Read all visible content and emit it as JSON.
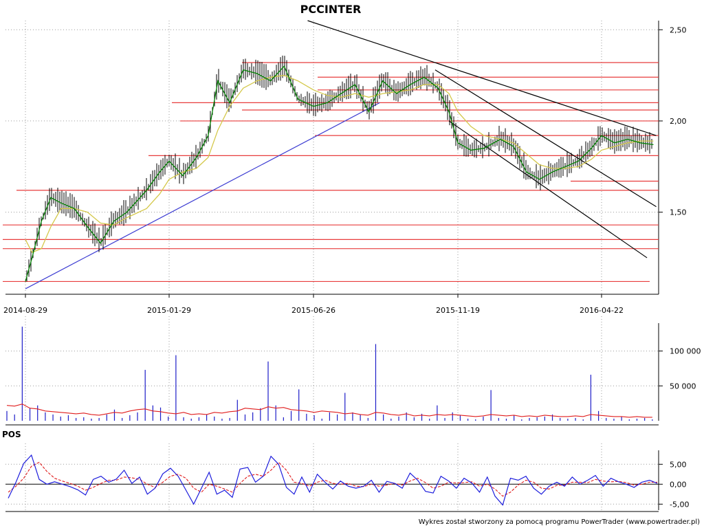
{
  "title": "PCCINTER",
  "footer": "Wykres został stworzony za pomocą programu PowerTrader (www.powertrader.pl)",
  "colors": {
    "price_bar": "#000000",
    "ma_short": "#008000",
    "ma_long": "#d4c84a",
    "support_lines": "#e83c3c",
    "trend_up": "#3c3cd2",
    "trend_down": "#000000",
    "volume_bar": "#1c1cc8",
    "volume_avg": "#e01c1c",
    "pos_line": "#1c1cdc",
    "pos_signal": "#e01c1c",
    "grid": "#9a9a9a"
  },
  "chart_data": [
    {
      "type": "line",
      "name": "price",
      "x_tick_labels": [
        "2014-08-29",
        "2015-01-29",
        "2015-06-26",
        "2015-11-19",
        "2016-04-22"
      ],
      "y_tick_labels": [
        "2,50",
        "2,00",
        "1,50"
      ],
      "ylim": [
        1.05,
        2.55
      ],
      "x": [
        "2014-08-29",
        "2014-09-05",
        "2014-09-15",
        "2014-09-25",
        "2014-10-06",
        "2014-10-20",
        "2014-11-03",
        "2014-11-17",
        "2014-12-01",
        "2014-12-15",
        "2015-01-05",
        "2015-01-19",
        "2015-01-29",
        "2015-02-12",
        "2015-02-26",
        "2015-03-10",
        "2015-03-20",
        "2015-04-01",
        "2015-04-15",
        "2015-04-29",
        "2015-05-13",
        "2015-05-27",
        "2015-06-10",
        "2015-06-26",
        "2015-07-10",
        "2015-07-24",
        "2015-08-07",
        "2015-08-21",
        "2015-09-04",
        "2015-09-18",
        "2015-10-02",
        "2015-10-16",
        "2015-10-30",
        "2015-11-10",
        "2015-11-19",
        "2015-12-03",
        "2015-12-17",
        "2016-01-04",
        "2016-01-18",
        "2016-02-01",
        "2016-02-15",
        "2016-02-29",
        "2016-03-14",
        "2016-03-28",
        "2016-04-11",
        "2016-04-22",
        "2016-05-06",
        "2016-05-20",
        "2016-06-03",
        "2016-06-17"
      ],
      "close": [
        1.12,
        1.25,
        1.45,
        1.58,
        1.55,
        1.52,
        1.42,
        1.33,
        1.45,
        1.5,
        1.62,
        1.72,
        1.78,
        1.7,
        1.8,
        1.92,
        2.22,
        2.1,
        2.28,
        2.26,
        2.22,
        2.3,
        2.12,
        2.08,
        2.1,
        2.15,
        2.2,
        2.05,
        2.22,
        2.15,
        2.2,
        2.24,
        2.18,
        2.05,
        1.88,
        1.84,
        1.85,
        1.9,
        1.86,
        1.72,
        1.68,
        1.72,
        1.75,
        1.78,
        1.85,
        1.92,
        1.88,
        1.9,
        1.88,
        1.87
      ],
      "ma_long": [
        1.35,
        1.28,
        1.3,
        1.42,
        1.52,
        1.52,
        1.5,
        1.44,
        1.43,
        1.47,
        1.52,
        1.6,
        1.68,
        1.72,
        1.74,
        1.8,
        1.95,
        2.08,
        2.18,
        2.22,
        2.24,
        2.25,
        2.22,
        2.17,
        2.14,
        2.13,
        2.15,
        2.13,
        2.15,
        2.16,
        2.17,
        2.2,
        2.2,
        2.15,
        2.05,
        1.97,
        1.92,
        1.9,
        1.88,
        1.82,
        1.76,
        1.74,
        1.74,
        1.75,
        1.79,
        1.84,
        1.86,
        1.88,
        1.89,
        1.89
      ],
      "support_levels": [
        2.32,
        2.24,
        2.17,
        2.1,
        2.06,
        2.0,
        1.92,
        1.81,
        1.67,
        1.62,
        1.43,
        1.35,
        1.3,
        1.12
      ],
      "trendlines": [
        {
          "kind": "up",
          "from": [
            "2014-08-29",
            1.08
          ],
          "to": [
            "2015-09-01",
            2.1
          ]
        },
        {
          "kind": "down",
          "from": [
            "2015-06-20",
            2.55
          ],
          "to": [
            "2016-06-20",
            1.92
          ]
        },
        {
          "kind": "down",
          "from": [
            "2015-10-27",
            2.28
          ],
          "to": [
            "2016-06-20",
            1.53
          ]
        },
        {
          "kind": "down",
          "from": [
            "2015-11-10",
            2.0
          ],
          "to": [
            "2016-06-10",
            1.25
          ]
        }
      ]
    },
    {
      "type": "bar",
      "name": "volume",
      "y_tick_labels": [
        "100 000",
        "50 000"
      ],
      "ylim": [
        0,
        140000
      ],
      "values": [
        14000,
        9000,
        135000,
        18000,
        22000,
        12000,
        9000,
        6000,
        8000,
        4000,
        5000,
        3000,
        4000,
        9000,
        16000,
        4000,
        8000,
        12000,
        73000,
        22000,
        19000,
        6000,
        94000,
        5000,
        3000,
        5000,
        9000,
        6000,
        3000,
        4000,
        30000,
        9000,
        12000,
        18000,
        85000,
        22000,
        5000,
        14000,
        45000,
        10000,
        8000,
        3000,
        12000,
        9000,
        40000,
        12000,
        9000,
        4000,
        110000,
        9000,
        3000,
        6000,
        12000,
        5000,
        10000,
        3000,
        22000,
        4000,
        12000,
        8000,
        3000,
        2000,
        6000,
        44000,
        4000,
        3000,
        8000,
        2000,
        4000,
        5000,
        6000,
        9000,
        4000,
        3000,
        4000,
        2000,
        66000,
        14000,
        4000,
        3000,
        6000,
        2000,
        3000,
        4000,
        2000
      ],
      "avg": [
        22000,
        21000,
        24000,
        18000,
        17000,
        14000,
        13000,
        12000,
        11000,
        10000,
        11000,
        9000,
        8000,
        10000,
        12000,
        11000,
        14000,
        16000,
        17000,
        14000,
        13000,
        11000,
        10000,
        12000,
        9000,
        10000,
        9000,
        12000,
        11000,
        13000,
        14000,
        18000,
        17000,
        16000,
        20000,
        18000,
        19000,
        16000,
        15000,
        14000,
        12000,
        14000,
        13000,
        12000,
        10000,
        11000,
        9000,
        8000,
        12000,
        11000,
        9000,
        8000,
        10000,
        7000,
        8000,
        7000,
        9000,
        8000,
        9000,
        8000,
        7000,
        6000,
        7000,
        9000,
        8000,
        7000,
        8000,
        6000,
        7000,
        6000,
        8000,
        7000,
        6000,
        6000,
        7000,
        6000,
        9000,
        8000,
        7000,
        6000,
        6000,
        5000,
        6000,
        5000,
        5000
      ]
    },
    {
      "type": "line",
      "name": "POS",
      "title": "POS",
      "y_tick_labels": [
        "5,00",
        "0,00",
        "-5,00"
      ],
      "ylim": [
        -6.5,
        8.5
      ],
      "values": [
        -3.5,
        0.5,
        5.2,
        7.3,
        1.2,
        0.0,
        0.6,
        0.0,
        -0.6,
        -1.4,
        -2.7,
        1.2,
        2.0,
        0.5,
        1.3,
        3.5,
        0.2,
        1.8,
        -2.5,
        -1.0,
        2.6,
        4.0,
        2.0,
        -1.5,
        -5.0,
        -1.0,
        3.0,
        -2.5,
        -1.5,
        -3.3,
        3.8,
        4.2,
        0.5,
        2.0,
        7.0,
        5.0,
        -0.8,
        -2.5,
        1.8,
        -2.0,
        2.5,
        0.5,
        -1.2,
        0.8,
        -0.5,
        -1.0,
        -0.5,
        1.0,
        -2.0,
        0.7,
        0.2,
        -1.0,
        2.8,
        1.0,
        -1.8,
        -2.2,
        2.0,
        0.8,
        -1.0,
        1.5,
        0.3,
        -2.0,
        1.8,
        -3.0,
        -5.2,
        1.5,
        1.0,
        2.0,
        -1.0,
        -2.5,
        -0.5,
        0.5,
        -0.5,
        1.8,
        0.0,
        1.0,
        2.2,
        -0.5,
        1.5,
        0.6,
        0.0,
        -0.8,
        0.5,
        1.0,
        0.2
      ],
      "signal": [
        -2.0,
        -0.5,
        1.5,
        4.5,
        5.5,
        3.2,
        1.5,
        0.8,
        0.2,
        -0.5,
        -1.5,
        -0.8,
        0.2,
        1.0,
        1.0,
        1.8,
        1.6,
        1.2,
        0.0,
        -0.8,
        0.5,
        2.0,
        2.5,
        1.5,
        -1.0,
        -2.0,
        0.0,
        -0.5,
        -1.2,
        -2.0,
        0.2,
        2.0,
        2.5,
        2.0,
        3.5,
        5.5,
        3.5,
        0.5,
        0.2,
        -0.5,
        0.5,
        1.0,
        0.2,
        0.0,
        0.2,
        -0.5,
        -0.6,
        0.0,
        -0.5,
        -0.2,
        0.2,
        -0.2,
        0.8,
        1.5,
        0.4,
        -1.0,
        -0.5,
        0.5,
        0.3,
        0.4,
        0.6,
        -0.5,
        0.0,
        -1.2,
        -3.0,
        -2.0,
        -0.2,
        1.0,
        0.5,
        -1.0,
        -1.2,
        -0.3,
        -0.2,
        0.5,
        0.5,
        0.4,
        1.2,
        0.8,
        0.6,
        0.7,
        0.4,
        -0.2,
        0.0,
        0.5,
        0.5
      ]
    }
  ]
}
